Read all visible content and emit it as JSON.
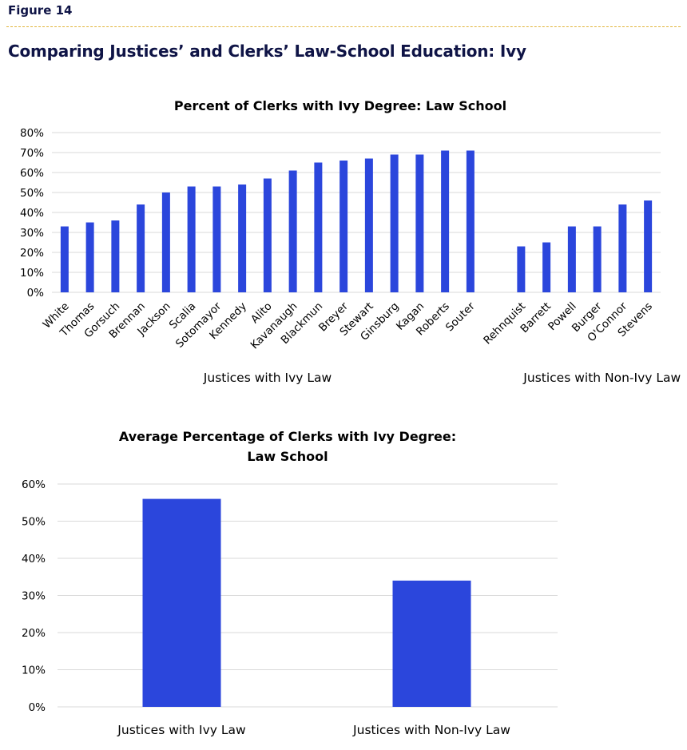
{
  "figure": {
    "label": "Figure 14",
    "title": "Comparing Justices’ and Clerks’ Law-School Education: Ivy"
  },
  "colors": {
    "bar": "#2b46dc",
    "grid": "#d9d9d9",
    "heading": "#0f1446",
    "rule": "#e2b53c"
  },
  "chart_data": [
    {
      "type": "bar",
      "title": "Percent of Clerks with Ivy Degree: Law School",
      "ylim": [
        0,
        80
      ],
      "yticks": [
        "0%",
        "10%",
        "20%",
        "30%",
        "40%",
        "50%",
        "60%",
        "70%",
        "80%"
      ],
      "groups": [
        {
          "label": "Justices with Ivy Law",
          "categories": [
            "White",
            "Thomas",
            "Gorsuch",
            "Brennan",
            "Jackson",
            "Scalia",
            "Sotomayor",
            "Kennedy",
            "Alito",
            "Kavanaugh",
            "Blackmun",
            "Breyer",
            "Stewart",
            "Ginsburg",
            "Kagan",
            "Roberts",
            "Souter"
          ],
          "values": [
            33,
            35,
            36,
            44,
            50,
            53,
            53,
            54,
            57,
            61,
            65,
            66,
            67,
            69,
            69,
            71,
            71
          ]
        },
        {
          "label": "Justices with Non-Ivy Law",
          "categories": [
            "Rehnquist",
            "Barrett",
            "Powell",
            "Burger",
            "O'Connor",
            "Stevens"
          ],
          "values": [
            23,
            25,
            33,
            33,
            44,
            46
          ]
        }
      ],
      "grid": true,
      "legend": "none"
    },
    {
      "type": "bar",
      "title": "Average Percentage of Clerks with Ivy Degree: Law School",
      "categories": [
        "Justices with Ivy Law",
        "Justices with Non-Ivy Law"
      ],
      "values": [
        56,
        34
      ],
      "ylim": [
        0,
        60
      ],
      "yticks": [
        "0%",
        "10%",
        "20%",
        "30%",
        "40%",
        "50%",
        "60%"
      ],
      "grid": true,
      "legend": "none"
    }
  ]
}
